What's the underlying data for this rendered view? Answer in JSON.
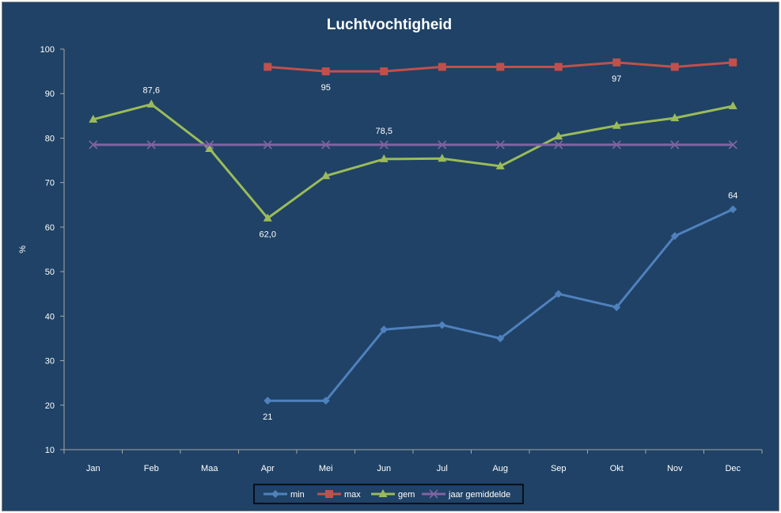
{
  "chart_data": {
    "type": "line",
    "title": "Luchtvochtigheid",
    "ylabel": "%",
    "xlabel": "",
    "ylim": [
      10,
      100
    ],
    "yticks": [
      10,
      20,
      30,
      40,
      50,
      60,
      70,
      80,
      90,
      100
    ],
    "grid": false,
    "legend": "bottom",
    "categories": [
      "Jan",
      "Feb",
      "Maa",
      "Apr",
      "Mei",
      "Jun",
      "Jul",
      "Aug",
      "Sep",
      "Okt",
      "Nov",
      "Dec"
    ],
    "series": [
      {
        "name": "min",
        "color": "#4f81bd",
        "marker": "diamond",
        "values": [
          null,
          null,
          null,
          21,
          21,
          37,
          38,
          35,
          45,
          42,
          58,
          64
        ]
      },
      {
        "name": "max",
        "color": "#c0504d",
        "marker": "square",
        "values": [
          null,
          null,
          null,
          96,
          95,
          95,
          96,
          96,
          96,
          97,
          96,
          97
        ]
      },
      {
        "name": "gem",
        "color": "#9bbb59",
        "marker": "triangle",
        "values": [
          84.2,
          87.6,
          77.6,
          62.0,
          71.5,
          75.3,
          75.4,
          73.7,
          80.4,
          82.8,
          84.5,
          87.2
        ]
      },
      {
        "name": "jaar gemiddelde",
        "color": "#8064a2",
        "marker": "x",
        "values": [
          78.5,
          78.5,
          78.5,
          78.5,
          78.5,
          78.5,
          78.5,
          78.5,
          78.5,
          78.5,
          78.5,
          78.5
        ]
      }
    ],
    "annotations": [
      {
        "series": "gem",
        "category": "Feb",
        "text": "87,6",
        "position": "above"
      },
      {
        "series": "max",
        "category": "Mei",
        "text": "95",
        "position": "below"
      },
      {
        "series": "jaar gemiddelde",
        "category": "Jun",
        "text": "78,5",
        "position": "above"
      },
      {
        "series": "gem",
        "category": "Apr",
        "text": "62,0",
        "position": "below"
      },
      {
        "series": "max",
        "category": "Okt",
        "text": "97",
        "position": "below"
      },
      {
        "series": "min",
        "category": "Dec",
        "text": "64",
        "position": "above"
      },
      {
        "series": "min",
        "category": "Apr",
        "text": "21",
        "position": "below"
      }
    ]
  }
}
